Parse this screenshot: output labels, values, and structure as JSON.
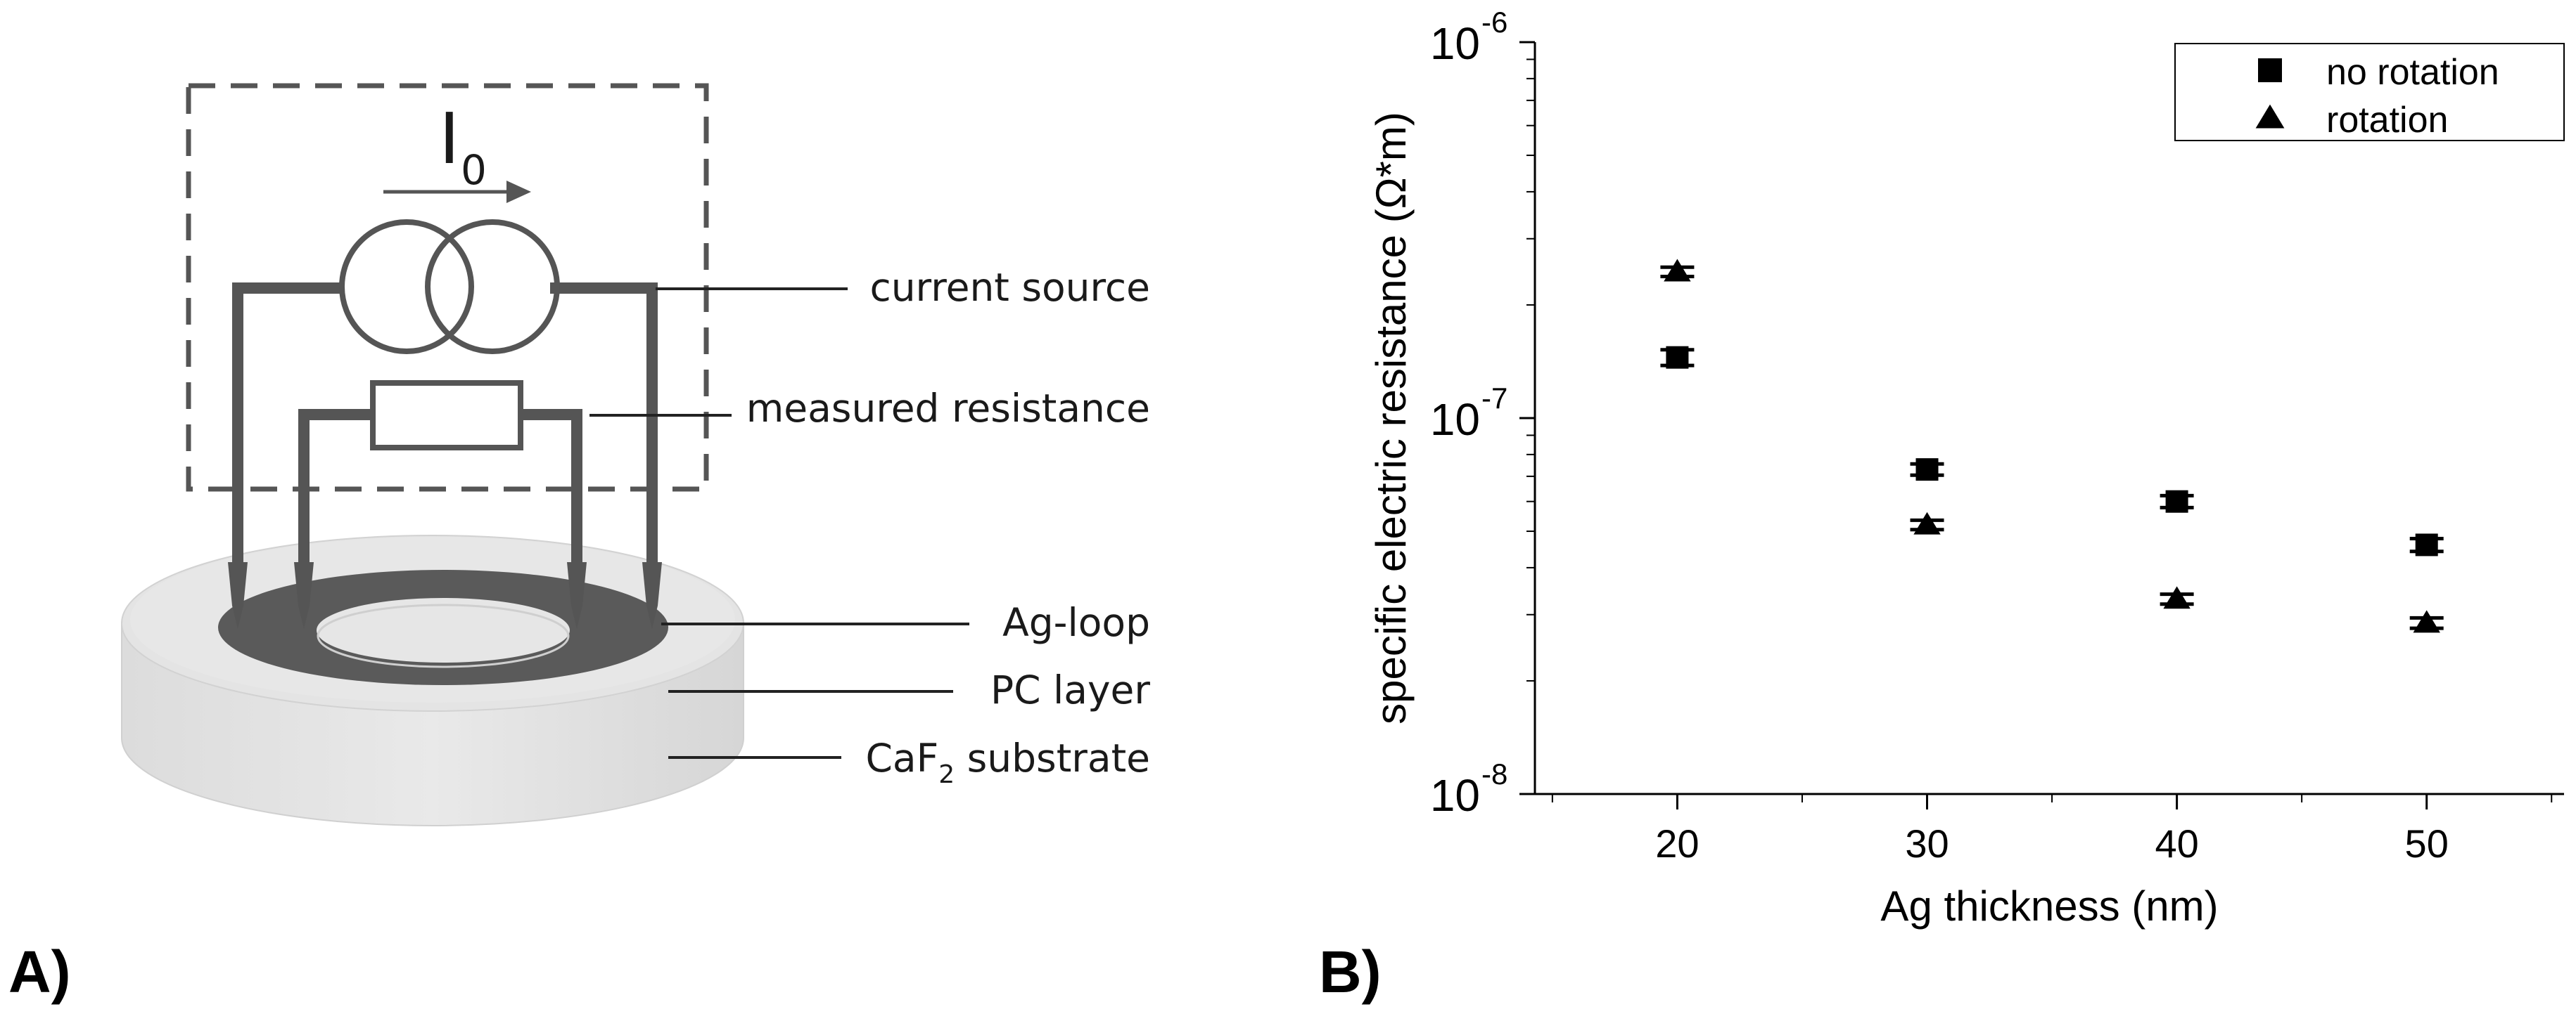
{
  "panel_a": {
    "label": "A)",
    "current_symbol": "I",
    "current_subscript": "0",
    "labels": {
      "current_source": "current source",
      "measured_resistance": "measured resistance",
      "ag_loop": "Ag-loop",
      "pc_layer": "PC layer",
      "substrate_prefix": "CaF",
      "substrate_subscript": "2",
      "substrate_suffix": " substrate"
    }
  },
  "panel_b": {
    "label": "B)"
  },
  "chart_data": {
    "type": "scatter",
    "title": "",
    "xlabel": "Ag thickness (nm)",
    "ylabel": "specific electric resistance (Ω*m)",
    "yscale": "log",
    "xlim": [
      14.3,
      55.5
    ],
    "ylim": [
      1e-08,
      1e-06
    ],
    "x_ticks": [
      20,
      30,
      40,
      50
    ],
    "x_tick_labels": [
      "20",
      "30",
      "40",
      "50"
    ],
    "y_ticks": [
      1e-08,
      1e-07,
      1e-06
    ],
    "y_tick_labels": [
      {
        "base": "10",
        "exp": "-8"
      },
      {
        "base": "10",
        "exp": "-7"
      },
      {
        "base": "10",
        "exp": "-6"
      }
    ],
    "grid": false,
    "legend_position": "top-right",
    "series": [
      {
        "name": "no rotation",
        "marker": "square",
        "x": [
          20,
          30,
          40,
          50
        ],
        "values": [
          1.45e-07,
          7.3e-08,
          6e-08,
          4.6e-08
        ],
        "errors": [
          7e-09,
          2.5e-09,
          2.2e-09,
          1.8e-09
        ]
      },
      {
        "name": "rotation",
        "marker": "triangle",
        "x": [
          20,
          30,
          40,
          50
        ],
        "values": [
          2.45e-07,
          5.2e-08,
          3.3e-08,
          2.85e-08
        ],
        "errors": [
          7e-09,
          1.5e-09,
          1e-09,
          9e-10
        ]
      }
    ]
  }
}
